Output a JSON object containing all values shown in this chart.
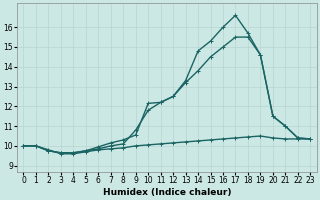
{
  "xlabel": "Humidex (Indice chaleur)",
  "xlim": [
    -0.5,
    23.5
  ],
  "ylim": [
    8.7,
    17.2
  ],
  "background_color": "#cce8e4",
  "grid_color": "#b8d4d0",
  "line_color": "#1a6464",
  "xticks": [
    0,
    1,
    2,
    3,
    4,
    5,
    6,
    7,
    8,
    9,
    10,
    11,
    12,
    13,
    14,
    15,
    16,
    17,
    18,
    19,
    20,
    21,
    22,
    23
  ],
  "yticks": [
    9,
    10,
    11,
    12,
    13,
    14,
    15,
    16
  ],
  "series1_x": [
    0,
    1,
    2,
    3,
    4,
    5,
    6,
    7,
    8,
    9,
    10,
    11,
    12,
    13,
    14,
    15,
    16,
    17,
    18,
    19,
    20,
    21,
    22,
    23
  ],
  "series1_y": [
    10.0,
    10.0,
    9.8,
    9.6,
    9.6,
    9.7,
    9.8,
    9.85,
    9.9,
    10.0,
    10.05,
    10.1,
    10.15,
    10.2,
    10.25,
    10.3,
    10.35,
    10.4,
    10.45,
    10.5,
    10.4,
    10.35,
    10.35,
    10.35
  ],
  "series2_x": [
    0,
    1,
    2,
    3,
    4,
    5,
    6,
    7,
    8,
    9,
    10,
    11,
    12,
    13,
    14,
    15,
    16,
    17,
    18,
    19,
    20,
    21,
    22,
    23
  ],
  "series2_y": [
    10.0,
    10.0,
    9.75,
    9.65,
    9.65,
    9.75,
    9.85,
    10.0,
    10.1,
    10.8,
    11.8,
    12.2,
    12.5,
    13.3,
    14.8,
    15.3,
    16.0,
    16.6,
    15.7,
    14.6,
    11.5,
    11.0,
    10.4,
    10.35
  ],
  "series3_x": [
    0,
    1,
    2,
    3,
    4,
    5,
    6,
    7,
    8,
    9,
    10,
    11,
    12,
    13,
    14,
    15,
    16,
    17,
    18,
    19,
    20,
    21,
    22,
    23
  ],
  "series3_y": [
    10.0,
    10.0,
    9.75,
    9.65,
    9.65,
    9.75,
    9.95,
    10.15,
    10.3,
    10.55,
    12.15,
    12.2,
    12.5,
    13.2,
    13.8,
    14.5,
    15.0,
    15.5,
    15.5,
    14.6,
    11.5,
    11.0,
    10.4,
    10.35
  ],
  "marker_size": 2.5,
  "line_width": 1.0,
  "tick_fontsize": 5.5,
  "label_fontsize": 6.5
}
